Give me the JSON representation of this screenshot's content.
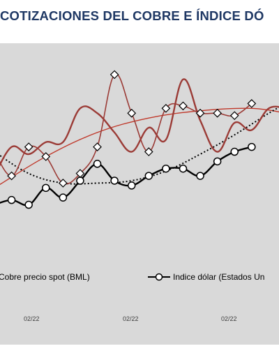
{
  "title": "COTIZACIONES DEL COBRE E ÍNDICE DÓ",
  "colors": {
    "background": "#d9d9d9",
    "title": "#1f3864",
    "copper": "#9b3b36",
    "copper_trend": "#c0392b",
    "dollar": "#000000"
  },
  "chart_data": {
    "type": "line",
    "title": "COTIZACIONES DEL COBRE E ÍNDICE DÓ",
    "x_tick_labels": [
      "02/22",
      "02/22",
      "02/22"
    ],
    "legend": {
      "placement": "bottom",
      "entries": [
        "Cobre precio spot (BML)",
        "Indice dólar (Estados Un"
      ]
    },
    "grid": false,
    "series": [
      {
        "name": "Cobre precio spot (BML)",
        "marker": "none",
        "values": [
          {
            "x": 0,
            "y": 210
          },
          {
            "x": 1,
            "y": 222
          },
          {
            "x": 2,
            "y": 219
          },
          {
            "x": 3,
            "y": 224
          },
          {
            "x": 4,
            "y": 224
          },
          {
            "x": 5,
            "y": 238
          },
          {
            "x": 6,
            "y": 236
          },
          {
            "x": 7,
            "y": 228
          },
          {
            "x": 8,
            "y": 220
          },
          {
            "x": 9,
            "y": 230
          },
          {
            "x": 10,
            "y": 225
          },
          {
            "x": 11,
            "y": 250
          },
          {
            "x": 12,
            "y": 233
          },
          {
            "x": 13,
            "y": 220
          },
          {
            "x": 14,
            "y": 232
          },
          {
            "x": 15,
            "y": 229
          },
          {
            "x": 16,
            "y": 238
          },
          {
            "x": 17,
            "y": 238
          }
        ]
      },
      {
        "name": "Indice dólar (Estados Un",
        "marker": "circle",
        "values": [
          {
            "x": 0,
            "y": 198
          },
          {
            "x": 1,
            "y": 200
          },
          {
            "x": 2,
            "y": 198
          },
          {
            "x": 3,
            "y": 205
          },
          {
            "x": 4,
            "y": 201
          },
          {
            "x": 5,
            "y": 208
          },
          {
            "x": 6,
            "y": 215
          },
          {
            "x": 7,
            "y": 208
          },
          {
            "x": 8,
            "y": 206
          },
          {
            "x": 9,
            "y": 210
          },
          {
            "x": 10,
            "y": 213
          },
          {
            "x": 11,
            "y": 213
          },
          {
            "x": 12,
            "y": 210
          },
          {
            "x": 13,
            "y": 216
          },
          {
            "x": 14,
            "y": 220
          },
          {
            "x": 15,
            "y": 222
          }
        ]
      },
      {
        "name": "",
        "marker": "diamond",
        "values": [
          {
            "x": 0,
            "y": 220
          },
          {
            "x": 1,
            "y": 210
          },
          {
            "x": 2,
            "y": 222
          },
          {
            "x": 3,
            "y": 218
          },
          {
            "x": 4,
            "y": 207
          },
          {
            "x": 5,
            "y": 211
          },
          {
            "x": 6,
            "y": 222
          },
          {
            "x": 7,
            "y": 252
          },
          {
            "x": 8,
            "y": 236
          },
          {
            "x": 9,
            "y": 220
          },
          {
            "x": 10,
            "y": 238
          },
          {
            "x": 11,
            "y": 239
          },
          {
            "x": 12,
            "y": 236
          },
          {
            "x": 13,
            "y": 236
          },
          {
            "x": 14,
            "y": 235
          },
          {
            "x": 15,
            "y": 240
          }
        ]
      }
    ],
    "trendlines": [
      {
        "style": "solid",
        "color": "#c0392b",
        "values": [
          {
            "x": 0,
            "y": 205
          },
          {
            "x": 3,
            "y": 218
          },
          {
            "x": 6,
            "y": 228
          },
          {
            "x": 9,
            "y": 234
          },
          {
            "x": 12,
            "y": 237
          },
          {
            "x": 15,
            "y": 238
          },
          {
            "x": 17,
            "y": 236
          }
        ]
      },
      {
        "style": "dotted",
        "color": "#000000",
        "values": [
          {
            "x": 0,
            "y": 220
          },
          {
            "x": 2,
            "y": 211
          },
          {
            "x": 4,
            "y": 207
          },
          {
            "x": 6,
            "y": 207
          },
          {
            "x": 8,
            "y": 208
          },
          {
            "x": 10,
            "y": 212
          },
          {
            "x": 12,
            "y": 219
          },
          {
            "x": 14,
            "y": 227
          },
          {
            "x": 16,
            "y": 236
          },
          {
            "x": 17,
            "y": 240
          }
        ]
      }
    ],
    "xlim": [
      0,
      17
    ],
    "ylim": [
      140,
      265
    ]
  }
}
